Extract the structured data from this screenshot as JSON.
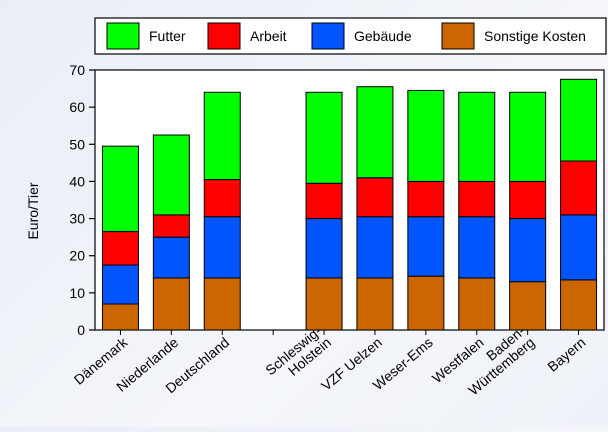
{
  "chart_data": {
    "type": "bar",
    "stacked": true,
    "categories": [
      "Dänemark",
      "Niederlande",
      "Deutschland",
      "",
      "Schleswig-\nHolstein",
      "VZF Uelzen",
      "Weser-Ems",
      "Westfalen",
      "Baden-\nWürttemberg",
      "Bayern"
    ],
    "series": [
      {
        "name": "Sonstige Kosten",
        "color": "#cc6600",
        "values": [
          7,
          14,
          14,
          null,
          14,
          14,
          14.5,
          14,
          13,
          13.5
        ]
      },
      {
        "name": "Gebäude",
        "color": "#0055ff",
        "values": [
          10.5,
          11,
          16.5,
          null,
          16,
          16.5,
          16,
          16.5,
          17,
          17.5
        ]
      },
      {
        "name": "Arbeit",
        "color": "#ff0000",
        "values": [
          9,
          6,
          10,
          null,
          9.5,
          10.5,
          9.5,
          9.5,
          10,
          14.5
        ]
      },
      {
        "name": "Futter",
        "color": "#00ff00",
        "values": [
          23,
          21.5,
          23.5,
          null,
          24.5,
          24.5,
          24.5,
          24,
          24,
          22
        ]
      }
    ],
    "ylabel": "Euro/Tier",
    "xlabel": "",
    "ylim": [
      0,
      70
    ],
    "yticks": [
      0,
      10,
      20,
      30,
      40,
      50,
      60,
      70
    ],
    "grid": false,
    "legend_position": "top",
    "legend_order": [
      "Futter",
      "Arbeit",
      "Gebäude",
      "Sonstige Kosten"
    ]
  }
}
